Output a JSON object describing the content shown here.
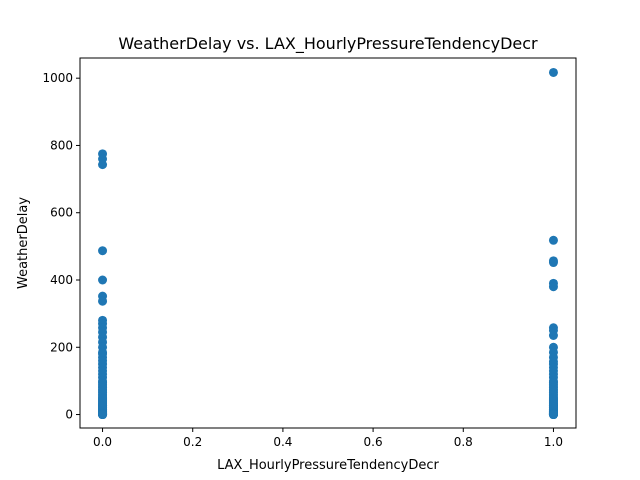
{
  "chart_data": {
    "type": "scatter",
    "title": "WeatherDelay vs. LAX_HourlyPressureTendencyDecr",
    "xlabel": "LAX_HourlyPressureTendencyDecr",
    "ylabel": "WeatherDelay",
    "xlim": [
      -0.05,
      1.05
    ],
    "ylim": [
      -40,
      1060
    ],
    "xticks": [
      0.0,
      0.2,
      0.4,
      0.6,
      0.8,
      1.0
    ],
    "xtick_labels": [
      "0.0",
      "0.2",
      "0.4",
      "0.6",
      "0.8",
      "1.0"
    ],
    "yticks": [
      0,
      200,
      400,
      600,
      800,
      1000
    ],
    "ytick_labels": [
      "0",
      "200",
      "400",
      "600",
      "800",
      "1000"
    ],
    "grid": false,
    "marker_color": "#1f77b4",
    "series": [
      {
        "x": [
          0,
          0,
          0,
          0,
          0,
          0,
          0,
          0,
          0,
          0,
          0,
          0,
          0,
          0,
          0,
          0,
          0,
          0,
          0,
          0,
          0,
          0,
          0,
          0,
          0,
          0,
          0,
          0,
          0,
          0,
          0,
          0,
          0,
          0,
          0,
          0,
          0,
          0,
          0,
          0,
          0,
          0,
          0,
          0,
          0,
          0,
          0,
          0,
          0,
          0,
          0,
          0,
          0,
          0,
          0,
          0,
          0,
          0,
          0,
          0,
          0,
          0,
          0,
          0,
          0,
          0,
          0,
          0,
          0,
          0,
          0,
          0,
          0,
          0,
          0,
          0,
          0,
          1,
          1,
          1,
          1,
          1,
          1,
          1,
          1,
          1,
          1,
          1,
          1,
          1,
          1,
          1,
          1,
          1,
          1,
          1,
          1,
          1,
          1,
          1,
          1,
          1,
          1,
          1,
          1,
          1,
          1,
          1,
          1,
          1,
          1,
          1,
          1,
          1,
          1,
          1,
          1,
          1,
          1,
          1,
          1,
          1,
          1,
          1,
          1,
          1,
          1,
          1,
          1,
          1,
          1,
          1,
          1,
          1,
          1,
          1,
          1,
          1,
          1,
          1,
          1,
          1,
          1,
          1,
          1,
          1,
          1,
          1
        ],
        "y": [
          775,
          760,
          743,
          487,
          400,
          352,
          337,
          280,
          270,
          258,
          245,
          230,
          215,
          200,
          185,
          180,
          170,
          160,
          150,
          140,
          130,
          120,
          110,
          100,
          95,
          90,
          85,
          80,
          75,
          70,
          65,
          60,
          55,
          50,
          47,
          44,
          41,
          38,
          35,
          32,
          30,
          28,
          26,
          24,
          22,
          20,
          18,
          16,
          14,
          12,
          11,
          10,
          9,
          8,
          7,
          6,
          5,
          5,
          4,
          4,
          3,
          3,
          2,
          2,
          2,
          1,
          1,
          1,
          0,
          0,
          0,
          0,
          0,
          0,
          0,
          0,
          0,
          1017,
          518,
          457,
          452,
          390,
          380,
          258,
          250,
          235,
          200,
          185,
          170,
          158,
          150,
          140,
          130,
          120,
          110,
          100,
          95,
          90,
          85,
          80,
          75,
          70,
          65,
          60,
          55,
          50,
          47,
          44,
          41,
          38,
          35,
          32,
          30,
          28,
          26,
          24,
          22,
          20,
          18,
          16,
          14,
          12,
          11,
          10,
          9,
          8,
          7,
          6,
          5,
          5,
          4,
          4,
          3,
          3,
          2,
          2,
          2,
          1,
          1,
          1,
          0,
          0,
          0,
          0,
          0,
          0,
          0,
          0
        ]
      }
    ]
  }
}
